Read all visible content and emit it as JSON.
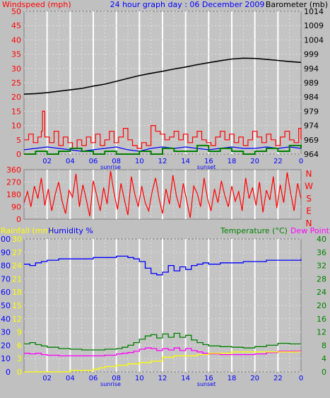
{
  "colors": {
    "background": "#c0c0c0",
    "plot_background": "#c4c4c4",
    "grid_major": "#ffffff",
    "grid_minor": "#e0e0e0",
    "wind": "#ff0000",
    "gust_fill": "#008000",
    "avg_wind": "#0000ff",
    "barometer": "#000000",
    "direction": "#ff0000",
    "humidity": "#0000ff",
    "temperature": "#008000",
    "dew_point": "#ff00ff",
    "rainfall": "#ffff00",
    "axis_text_red": "#ff0000",
    "axis_text_blue": "#0000ff",
    "axis_text_yellow": "#ffff00",
    "axis_text_green": "#008000",
    "axis_text_black": "#000000"
  },
  "chart_data": [
    {
      "type": "line",
      "title": "24 hour graph day : 06 December 2009",
      "left_axis_label": "Windspeed (mph)",
      "right_axis_label": "Barometer (mb)",
      "x_tick_labels": [
        "02",
        "04",
        "06",
        "08",
        "10",
        "12",
        "14",
        "16",
        "18",
        "20",
        "22",
        "0"
      ],
      "x_notes": [
        {
          "x_hour": 7.5,
          "label": "sunrise"
        },
        {
          "x_hour": 15.8,
          "label": "sunset"
        }
      ],
      "left_ticks": [
        "0",
        "5",
        "10",
        "15",
        "20",
        "25",
        "30",
        "35",
        "40",
        "45",
        "50"
      ],
      "right_ticks": [
        "964",
        "969",
        "974",
        "979",
        "984",
        "989",
        "994",
        "999",
        "1004",
        "1009",
        "1014"
      ],
      "xlim": [
        0,
        24
      ],
      "ylim_left": [
        0,
        50
      ],
      "ylim_right": [
        964,
        1014
      ],
      "series": [
        {
          "axis": "right",
          "x": [
            0,
            1,
            2,
            3,
            4,
            5,
            6,
            7,
            8,
            9,
            10,
            11,
            12,
            13,
            14,
            15,
            16,
            17,
            18,
            19,
            20,
            21,
            22,
            23,
            24
          ],
          "values": [
            985,
            985.2,
            985.5,
            986,
            986.5,
            987,
            987.8,
            988.5,
            989.5,
            990.5,
            991.5,
            992.3,
            993,
            993.8,
            994.5,
            995.3,
            996,
            996.7,
            997.3,
            997.6,
            997.5,
            997.2,
            996.8,
            996.4,
            996.1
          ]
        },
        {
          "axis": "left",
          "step": true,
          "x": [
            0,
            0.4,
            0.8,
            1.2,
            1.5,
            1.6,
            1.8,
            2.2,
            2.6,
            3,
            3.4,
            3.8,
            4.2,
            4.6,
            5,
            5.4,
            5.8,
            6.2,
            6.6,
            7,
            7.4,
            7.8,
            8.2,
            8.6,
            9,
            9.4,
            9.8,
            10.2,
            10.6,
            11,
            11.4,
            11.8,
            12.2,
            12.6,
            13,
            13.4,
            13.8,
            14.2,
            14.6,
            15,
            15.4,
            15.8,
            16.2,
            16.6,
            17,
            17.4,
            17.8,
            18.2,
            18.6,
            19,
            19.4,
            19.8,
            20.2,
            20.6,
            21,
            21.4,
            21.8,
            22.2,
            22.6,
            23,
            23.4,
            23.8,
            24
          ],
          "values": [
            5,
            7,
            4,
            6,
            8,
            15,
            6,
            4,
            8,
            3,
            6,
            4,
            2,
            5,
            3,
            6,
            4,
            7,
            3,
            5,
            8,
            4,
            6,
            9,
            5,
            3,
            2,
            4,
            3,
            10,
            8,
            7,
            5,
            6,
            8,
            5,
            7,
            4,
            6,
            8,
            5,
            4,
            3,
            6,
            8,
            5,
            7,
            4,
            6,
            3,
            5,
            8,
            6,
            4,
            7,
            5,
            3,
            6,
            8,
            5,
            4,
            9,
            5
          ]
        },
        {
          "axis": "left",
          "x": [
            0,
            1,
            2,
            3,
            4,
            5,
            6,
            7,
            8,
            9,
            10,
            11,
            12,
            13,
            14,
            15,
            16,
            17,
            18,
            19,
            20,
            21,
            22,
            23,
            24
          ],
          "values": [
            1.5,
            2,
            2.5,
            2,
            1.5,
            1,
            1.5,
            2,
            2.5,
            1.5,
            1,
            2,
            2.5,
            2,
            2.5,
            2,
            1.5,
            2,
            2.5,
            2,
            2,
            2.5,
            2,
            2.5,
            2
          ]
        },
        {
          "axis": "left",
          "step": true,
          "x": [
            0,
            1,
            2,
            3,
            4,
            5,
            6,
            7,
            8,
            9,
            10,
            11,
            12,
            13,
            14,
            15,
            16,
            17,
            18,
            19,
            20,
            21,
            22,
            23,
            24
          ],
          "values": [
            0,
            1,
            0,
            1,
            2,
            1,
            0,
            1,
            0,
            0,
            1,
            0,
            2,
            1,
            1,
            3,
            1,
            2,
            1,
            0,
            1,
            2,
            1,
            3,
            2
          ]
        }
      ]
    },
    {
      "type": "line",
      "right_axis_letters": [
        "N",
        "W",
        "S",
        "E",
        "N"
      ],
      "left_ticks": [
        "0",
        "90",
        "180",
        "270",
        "360"
      ],
      "xlim": [
        0,
        24
      ],
      "ylim": [
        0,
        360
      ],
      "series": [
        {
          "x": [
            0,
            0.3,
            0.6,
            0.9,
            1.2,
            1.5,
            1.8,
            2.1,
            2.4,
            2.7,
            3,
            3.3,
            3.6,
            3.9,
            4.2,
            4.5,
            4.8,
            5.1,
            5.4,
            5.7,
            6,
            6.3,
            6.6,
            6.9,
            7.2,
            7.5,
            7.8,
            8.1,
            8.4,
            8.7,
            9,
            9.3,
            9.6,
            9.9,
            10.2,
            10.5,
            10.8,
            11.1,
            11.4,
            11.7,
            12,
            12.3,
            12.6,
            12.9,
            13.2,
            13.5,
            13.8,
            14.1,
            14.4,
            14.7,
            15,
            15.3,
            15.6,
            15.9,
            16.2,
            16.5,
            16.8,
            17.1,
            17.4,
            17.7,
            18,
            18.3,
            18.6,
            18.9,
            19.2,
            19.5,
            19.8,
            20.1,
            20.4,
            20.7,
            21,
            21.3,
            21.6,
            21.9,
            22.2,
            22.5,
            22.8,
            23.1,
            23.4,
            23.7,
            24
          ],
          "values": [
            120,
            200,
            90,
            240,
            150,
            300,
            100,
            220,
            60,
            180,
            270,
            130,
            40,
            210,
            160,
            330,
            90,
            250,
            140,
            20,
            280,
            170,
            60,
            230,
            110,
            350,
            190,
            70,
            260,
            140,
            30,
            310,
            180,
            90,
            240,
            120,
            60,
            200,
            300,
            150,
            40,
            220,
            110,
            320,
            170,
            80,
            260,
            130,
            10,
            240,
            190,
            90,
            300,
            150,
            60,
            220,
            120,
            280,
            170,
            90,
            240,
            130,
            200,
            60,
            300,
            150,
            230,
            100,
            270,
            50,
            210,
            140,
            310,
            80,
            250,
            120,
            340,
            190,
            60,
            260,
            150
          ]
        }
      ]
    },
    {
      "type": "line",
      "left_axis_label_1": "Rainfall (mm)",
      "left_axis_label_2": "Humidity %",
      "right_axis_label_1": "Temperature (°C)",
      "right_axis_label_2": "Dew Point",
      "x_tick_labels": [
        "02",
        "04",
        "06",
        "08",
        "10",
        "12",
        "14",
        "16",
        "18",
        "20",
        "22",
        "0"
      ],
      "x_notes": [
        {
          "x_hour": 7.5,
          "label": "sunrise"
        },
        {
          "x_hour": 15.8,
          "label": "sunset"
        }
      ],
      "humidity_ticks": [
        "0",
        "10",
        "20",
        "30",
        "40",
        "50",
        "60",
        "70",
        "80",
        "90",
        "100"
      ],
      "rain_ticks": [
        "0",
        "3",
        "6",
        "9",
        "12",
        "15",
        "18",
        "21",
        "24",
        "27",
        "30"
      ],
      "temp_ticks": [
        "0",
        "4",
        "8",
        "12",
        "16",
        "20",
        "24",
        "28",
        "32",
        "36",
        "40"
      ],
      "xlim": [
        0,
        24
      ],
      "ylim_humidity": [
        0,
        100
      ],
      "ylim_rain": [
        0,
        30
      ],
      "ylim_temp": [
        0,
        40
      ],
      "series": [
        {
          "axis": "humidity",
          "step": true,
          "x": [
            0,
            0.5,
            1,
            1.5,
            2,
            3,
            4,
            5,
            6,
            7,
            8,
            8.5,
            9,
            9.5,
            10,
            10.5,
            11,
            11.5,
            12,
            12.5,
            13,
            13.5,
            14,
            14.5,
            15,
            15.5,
            16,
            17,
            18,
            19,
            20,
            21,
            22,
            23,
            24
          ],
          "values": [
            81,
            80,
            82,
            83,
            84,
            85,
            85,
            85,
            86,
            86,
            87,
            87,
            86,
            85,
            83,
            78,
            74,
            73,
            75,
            80,
            76,
            79,
            77,
            80,
            81,
            82,
            81,
            82,
            82,
            83,
            83,
            84,
            84,
            84,
            85
          ]
        },
        {
          "axis": "temp",
          "step": true,
          "x": [
            0,
            0.5,
            1,
            1.5,
            2,
            3,
            4,
            5,
            6,
            7,
            8,
            8.5,
            9,
            9.5,
            10,
            10.5,
            11,
            11.5,
            12,
            12.5,
            13,
            13.5,
            14,
            14.5,
            15,
            15.5,
            16,
            17,
            18,
            19,
            20,
            21,
            22,
            23,
            24
          ],
          "values": [
            8.4,
            8.8,
            8.2,
            7.8,
            7.4,
            7.0,
            6.8,
            6.6,
            6.6,
            6.8,
            7.0,
            7.4,
            8.0,
            8.8,
            9.8,
            10.8,
            11.2,
            10.2,
            11.4,
            10.4,
            11.6,
            10.4,
            11.0,
            9.6,
            8.8,
            8.2,
            7.8,
            7.6,
            7.4,
            7.2,
            7.6,
            8.0,
            8.6,
            8.4,
            8.4
          ]
        },
        {
          "axis": "temp",
          "step": true,
          "x": [
            0,
            0.5,
            1,
            1.5,
            2,
            3,
            4,
            5,
            6,
            7,
            8,
            8.5,
            9,
            9.5,
            10,
            10.5,
            11,
            11.5,
            12,
            12.5,
            13,
            13.5,
            14,
            14.5,
            15,
            15.5,
            16,
            17,
            18,
            19,
            20,
            21,
            22,
            23,
            24
          ],
          "values": [
            5.6,
            5.4,
            5.6,
            5.2,
            5.0,
            4.8,
            4.8,
            4.8,
            4.8,
            5.0,
            5.4,
            5.6,
            5.8,
            6.2,
            6.8,
            7.2,
            7.0,
            6.4,
            7.0,
            6.6,
            7.2,
            6.4,
            7.0,
            6.4,
            6.0,
            5.6,
            5.4,
            5.2,
            5.2,
            5.2,
            5.4,
            5.8,
            6.2,
            6.2,
            6.4
          ]
        },
        {
          "axis": "rain",
          "step": true,
          "x": [
            0,
            2,
            4,
            6,
            6.5,
            7,
            8,
            9,
            10,
            11,
            12,
            13,
            14,
            15,
            16,
            17,
            18,
            20,
            22,
            24
          ],
          "values": [
            0.0,
            0.0,
            0.3,
            0.6,
            0.9,
            1.2,
            1.5,
            1.8,
            2.1,
            2.4,
            3.3,
            3.6,
            3.6,
            3.9,
            4.2,
            4.2,
            4.5,
            4.5,
            4.5,
            4.5
          ]
        }
      ]
    }
  ]
}
